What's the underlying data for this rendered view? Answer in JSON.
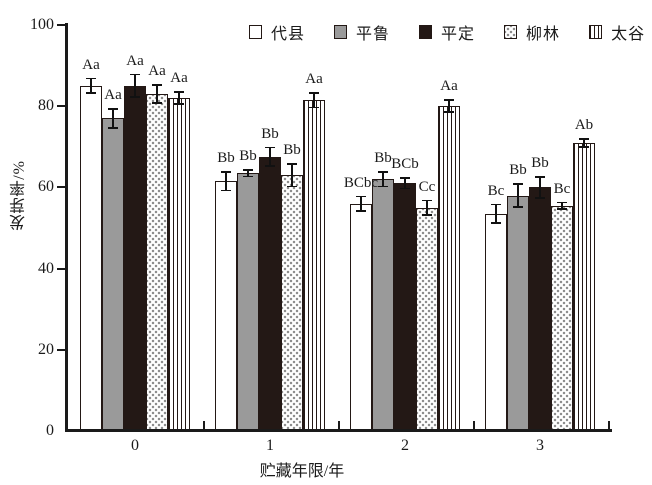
{
  "figure": {
    "y_ticks": [
      "0",
      "20",
      "40",
      "60",
      "80",
      "100"
    ],
    "y_tick_values": [
      0,
      20,
      40,
      60,
      80,
      100
    ]
  },
  "chart_data": {
    "type": "bar",
    "title": "",
    "xlabel": "贮藏年限/年",
    "ylabel": "发芽率/%",
    "ylim": [
      0,
      100
    ],
    "grid": false,
    "legend_position": "top-center",
    "error_bars": true,
    "categories": [
      "0",
      "1",
      "2",
      "3"
    ],
    "series": [
      {
        "name": "代县",
        "pattern": "white",
        "values": [
          85,
          61.5,
          56,
          53.5
        ],
        "errors": [
          2,
          2.5,
          2,
          2.5
        ],
        "letters": [
          "Aa",
          "Bb",
          "BCbc",
          "Bc"
        ]
      },
      {
        "name": "平鲁",
        "pattern": "gray",
        "values": [
          77,
          63.5,
          62,
          58
        ],
        "errors": [
          2.5,
          1,
          2,
          3
        ],
        "letters": [
          "Aa",
          "Bb",
          "Bb",
          "Bb"
        ]
      },
      {
        "name": "平定",
        "pattern": "black",
        "values": [
          85,
          67.5,
          61,
          60
        ],
        "errors": [
          3,
          2.5,
          1.5,
          2.8
        ],
        "letters": [
          "Aa",
          "Bb",
          "BCb",
          "Bb"
        ]
      },
      {
        "name": "柳林",
        "pattern": "dots",
        "values": [
          83,
          63,
          55,
          55.5
        ],
        "errors": [
          2.5,
          3,
          2,
          1
        ],
        "letters": [
          "Aa",
          "Bb",
          "Cc",
          "Bc"
        ]
      },
      {
        "name": "太谷",
        "pattern": "stripes",
        "values": [
          82,
          81.5,
          80,
          71
        ],
        "errors": [
          1.7,
          2,
          1.7,
          1.2
        ],
        "letters": [
          "Aa",
          "Aa",
          "Aa",
          "Ab"
        ]
      }
    ],
    "colors": {
      "outline": "#231815",
      "gray_fill": "#9a9a9a",
      "black_fill": "#231815",
      "axis": "#1a1a1a"
    }
  }
}
